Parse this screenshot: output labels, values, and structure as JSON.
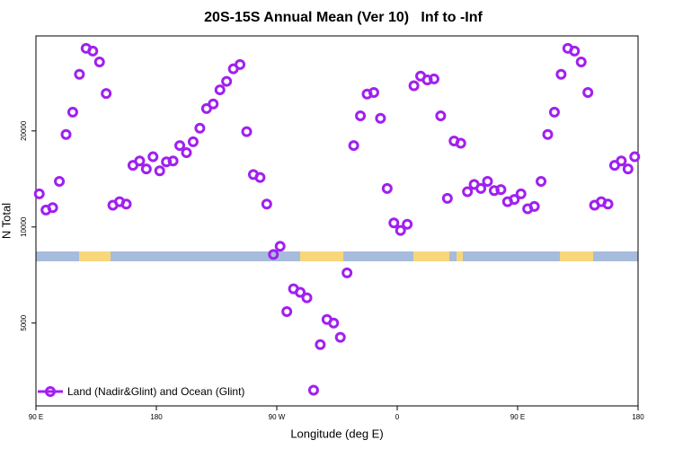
{
  "chart_data": {
    "type": "scatter",
    "title": "20S-15S Annual Mean (Ver 10)   Inf to -Inf",
    "x_label": "Longitude (deg E)",
    "y_label": "N Total",
    "x": [
      92.5,
      97.5,
      102.5,
      107.5,
      112.5,
      117.5,
      122.5,
      127.5,
      132.5,
      137.5,
      142.5,
      147.5,
      152.5,
      157.5,
      162.5,
      167.5,
      172.5,
      177.5,
      182.5,
      187.5,
      192.5,
      197.5,
      202.5,
      207.5,
      212.5,
      217.5,
      222.5,
      227.5,
      232.5,
      237.5,
      242.5,
      247.5,
      252.5,
      257.5,
      262.5,
      267.5,
      272.5,
      277.5,
      282.5,
      287.5,
      292.5,
      297.5,
      302.5,
      307.5,
      312.5,
      317.5,
      322.5,
      327.5,
      332.5,
      337.5,
      342.5,
      347.5,
      352.5,
      357.5,
      362.5,
      367.5,
      372.5,
      377.5,
      382.5,
      387.5,
      392.5,
      397.5,
      402.5,
      407.5,
      412.5,
      417.5,
      422.5,
      427.5,
      432.5,
      437.5,
      442.5,
      447.5,
      452.5,
      457.5,
      462.5,
      467.5,
      472.5,
      477.5,
      482.5,
      487.5,
      492.5,
      497.5,
      502.5,
      507.5,
      512.5,
      517.5,
      522.5,
      527.5,
      532.5,
      537.5
    ],
    "series": [
      {
        "name": "Land (Nadir&Glint) and Ocean (Glint)",
        "color": "#a020f0",
        "values": [
          12700,
          11300,
          11500,
          13900,
          19500,
          22900,
          30100,
          36300,
          35600,
          32900,
          26200,
          11700,
          12000,
          11800,
          15600,
          16100,
          15200,
          16600,
          15000,
          16000,
          16100,
          18000,
          17100,
          18500,
          20400,
          23500,
          24300,
          26900,
          28600,
          31300,
          32300,
          19900,
          14600,
          14300,
          11800,
          8200,
          8700,
          5430,
          6400,
          6240,
          6000,
          3080,
          4280,
          5130,
          5000,
          4510,
          7180,
          18000,
          22300,
          26100,
          26400,
          21900,
          13200,
          10300,
          9750,
          10200,
          27700,
          29700,
          28900,
          29100,
          22300,
          12300,
          18600,
          18300,
          12900,
          13600,
          13200,
          13900,
          13000,
          13100,
          12000,
          12200,
          12700,
          11400,
          11600,
          13900,
          19500,
          22900,
          30100,
          36300,
          35600,
          32900,
          26400,
          11700,
          12000,
          11800,
          15600,
          16100,
          15200,
          16600
        ]
      }
    ],
    "xlim": [
      90,
      540
    ],
    "xticks": [
      {
        "value": 90,
        "label": "90 E"
      },
      180,
      {
        "value": 270,
        "label": "90 W"
      },
      {
        "value": 360,
        "label": "0"
      },
      {
        "value": 450,
        "label": "90 E"
      },
      {
        "value": 540,
        "label": "180"
      }
    ],
    "ylim": [
      2750,
      39700
    ],
    "yticks": [
      5000,
      10000,
      20000
    ],
    "y_scale": "log",
    "legend": "bottom-left"
  }
}
